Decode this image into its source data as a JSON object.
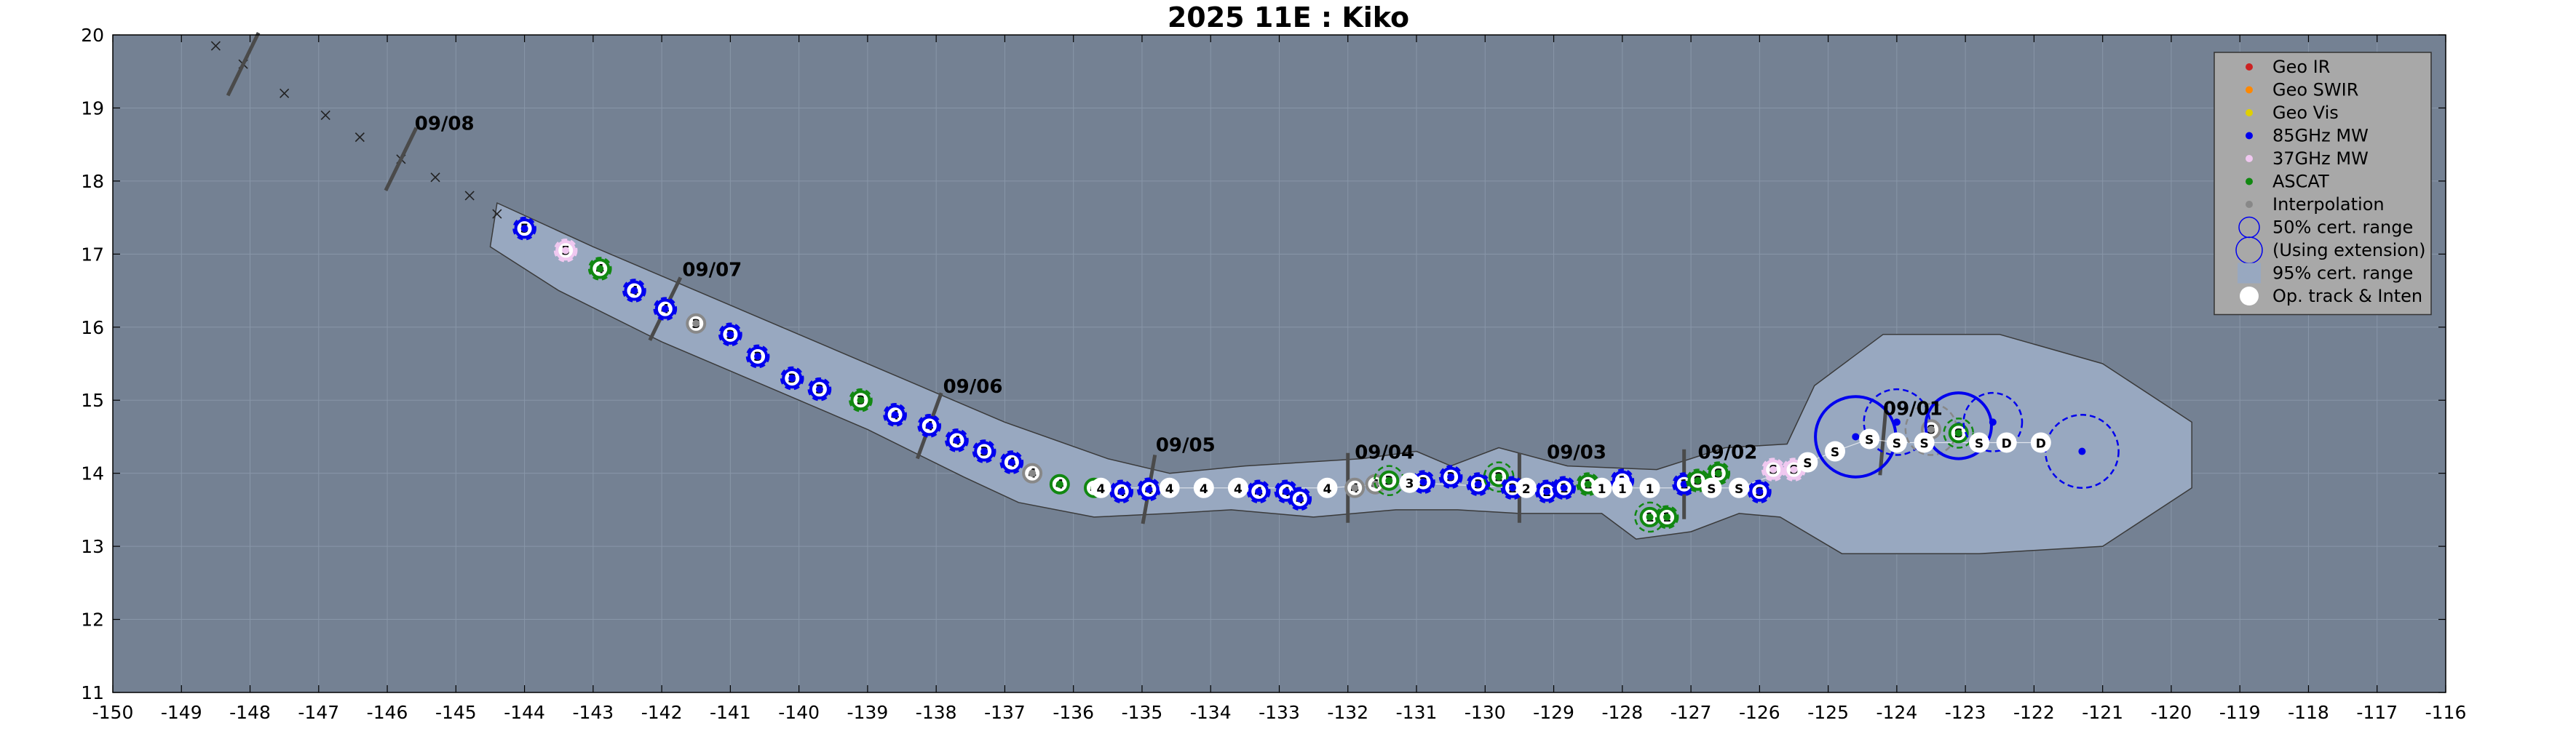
{
  "chart_data": {
    "type": "scatter",
    "title": "2025  11E :  Kiko",
    "xlabel": "",
    "ylabel": "",
    "xlim": [
      -150,
      -116
    ],
    "ylim": [
      11,
      20
    ],
    "xticks": [
      -150,
      -149,
      -148,
      -147,
      -146,
      -145,
      -144,
      -143,
      -142,
      -141,
      -140,
      -139,
      -138,
      -137,
      -136,
      -135,
      -134,
      -133,
      -132,
      -131,
      -130,
      -129,
      -128,
      -127,
      -126,
      -125,
      -124,
      -123,
      -122,
      -121,
      -120,
      -119,
      -118,
      -117,
      -116
    ],
    "yticks": [
      11,
      12,
      13,
      14,
      15,
      16,
      17,
      18,
      19,
      20
    ],
    "grid": true,
    "legend_position": "top-right",
    "colors": {
      "plot_background": "#748193",
      "cone_fill": "#98a8c0",
      "geo_ir": "#cc2222",
      "geo_swir": "#ff8800",
      "geo_vis": "#e0d000",
      "mw85": "#0000ee",
      "mw37": "#f0c8f0",
      "ascat": "#118811",
      "interp": "#888888",
      "op_track": "#ffffff"
    },
    "legend": [
      {
        "label": "Geo IR",
        "kind": "dot",
        "color": "#cc2222"
      },
      {
        "label": "Geo SWIR",
        "kind": "dot",
        "color": "#ff8800"
      },
      {
        "label": "Geo Vis",
        "kind": "dot",
        "color": "#e0d000"
      },
      {
        "label": "85GHz MW",
        "kind": "dot",
        "color": "#0000ee"
      },
      {
        "label": "37GHz MW",
        "kind": "dot",
        "color": "#f0c8f0"
      },
      {
        "label": "ASCAT",
        "kind": "dot",
        "color": "#118811"
      },
      {
        "label": "Interpolation",
        "kind": "dot",
        "color": "#888888"
      },
      {
        "label": "50% cert. range",
        "kind": "circle-dashed",
        "color": "#0000ee"
      },
      {
        "label": "(Using extension)",
        "kind": "circle-solid",
        "color": "#0000ee"
      },
      {
        "label": "95% cert. range",
        "kind": "square",
        "color": "#98a8c0"
      },
      {
        "label": "Op. track & Inten",
        "kind": "op-dot",
        "color": "#ffffff"
      }
    ],
    "date_labels": [
      {
        "text": "09/08",
        "x": -145.6,
        "y": 18.7
      },
      {
        "text": "09/07",
        "x": -141.7,
        "y": 16.7
      },
      {
        "text": "09/06",
        "x": -137.9,
        "y": 15.1
      },
      {
        "text": "09/05",
        "x": -134.8,
        "y": 14.3
      },
      {
        "text": "09/04",
        "x": -131.9,
        "y": 14.2
      },
      {
        "text": "09/03",
        "x": -129.1,
        "y": 14.2
      },
      {
        "text": "09/02",
        "x": -126.9,
        "y": 14.2
      },
      {
        "text": "09/01",
        "x": -124.2,
        "y": 14.8
      }
    ],
    "forecast_track": [
      {
        "x": -148.5,
        "y": 19.85
      },
      {
        "x": -148.1,
        "y": 19.6
      },
      {
        "x": -147.5,
        "y": 19.2
      },
      {
        "x": -146.9,
        "y": 18.9
      },
      {
        "x": -146.4,
        "y": 18.6
      },
      {
        "x": -145.8,
        "y": 18.3
      },
      {
        "x": -145.3,
        "y": 18.05
      },
      {
        "x": -144.8,
        "y": 17.8
      },
      {
        "x": -144.4,
        "y": 17.55
      }
    ],
    "op_track": [
      {
        "x": -135.6,
        "y": 13.8,
        "label": "4"
      },
      {
        "x": -134.6,
        "y": 13.8,
        "label": "4"
      },
      {
        "x": -134.1,
        "y": 13.8,
        "label": "4"
      },
      {
        "x": -133.6,
        "y": 13.8,
        "label": "4"
      },
      {
        "x": -132.3,
        "y": 13.8,
        "label": "4"
      },
      {
        "x": -131.1,
        "y": 13.87,
        "label": "3"
      },
      {
        "x": -129.4,
        "y": 13.8,
        "label": "2"
      },
      {
        "x": -128.3,
        "y": 13.8,
        "label": "1"
      },
      {
        "x": -128.0,
        "y": 13.8,
        "label": "1"
      },
      {
        "x": -127.6,
        "y": 13.8,
        "label": "1"
      },
      {
        "x": -126.7,
        "y": 13.8,
        "label": "S"
      },
      {
        "x": -126.3,
        "y": 13.8,
        "label": "S"
      },
      {
        "x": -125.3,
        "y": 14.15,
        "label": "S"
      },
      {
        "x": -124.9,
        "y": 14.3,
        "label": "S"
      },
      {
        "x": -124.4,
        "y": 14.47,
        "label": "S"
      },
      {
        "x": -124.0,
        "y": 14.42,
        "label": "S"
      },
      {
        "x": -123.6,
        "y": 14.42,
        "label": "S"
      },
      {
        "x": -122.8,
        "y": 14.42,
        "label": "S"
      },
      {
        "x": -122.4,
        "y": 14.42,
        "label": "D"
      },
      {
        "x": -121.9,
        "y": 14.42,
        "label": "D"
      }
    ],
    "fixes": [
      {
        "x": -144.0,
        "y": 17.35,
        "type": "mw85",
        "label": "5",
        "r50": 0.15
      },
      {
        "x": -143.4,
        "y": 17.05,
        "type": "mw37",
        "label": "5",
        "r50": 0.15
      },
      {
        "x": -142.9,
        "y": 16.8,
        "type": "ascat",
        "label": "4",
        "r50": 0.15
      },
      {
        "x": -142.4,
        "y": 16.5,
        "type": "mw85",
        "label": "4",
        "r50": 0.15
      },
      {
        "x": -141.95,
        "y": 16.25,
        "type": "mw85",
        "label": "4",
        "r50": 0.15
      },
      {
        "x": -141.5,
        "y": 16.05,
        "type": "interp",
        "label": "3",
        "r50": 0.12
      },
      {
        "x": -141.0,
        "y": 15.9,
        "type": "mw85",
        "label": "3",
        "r50": 0.15
      },
      {
        "x": -140.6,
        "y": 15.6,
        "type": "mw85",
        "label": "3",
        "r50": 0.15
      },
      {
        "x": -140.1,
        "y": 15.3,
        "type": "mw85",
        "label": "3",
        "r50": 0.15
      },
      {
        "x": -139.7,
        "y": 15.15,
        "type": "mw85",
        "label": "3",
        "r50": 0.15
      },
      {
        "x": -139.1,
        "y": 15.0,
        "type": "ascat",
        "label": "3",
        "r50": 0.15
      },
      {
        "x": -138.6,
        "y": 14.8,
        "type": "mw85",
        "label": "4",
        "r50": 0.15
      },
      {
        "x": -138.1,
        "y": 14.65,
        "type": "mw85",
        "label": "4",
        "r50": 0.15
      },
      {
        "x": -137.7,
        "y": 14.45,
        "type": "mw85",
        "label": "4",
        "r50": 0.15
      },
      {
        "x": -137.3,
        "y": 14.3,
        "type": "mw85",
        "label": "3",
        "r50": 0.15
      },
      {
        "x": -136.9,
        "y": 14.15,
        "type": "mw85",
        "label": "4",
        "r50": 0.15
      },
      {
        "x": -136.6,
        "y": 14.0,
        "type": "interp",
        "label": "4",
        "r50": 0.12
      },
      {
        "x": -136.2,
        "y": 13.85,
        "type": "ascat",
        "label": "4",
        "r50": 0.12
      },
      {
        "x": -135.7,
        "y": 13.8,
        "type": "ascat",
        "label": "4",
        "r50": 0.12
      },
      {
        "x": -135.3,
        "y": 13.75,
        "type": "mw85",
        "label": "4",
        "r50": 0.15
      },
      {
        "x": -134.9,
        "y": 13.78,
        "type": "mw85",
        "label": "4",
        "r50": 0.15
      },
      {
        "x": -133.3,
        "y": 13.75,
        "type": "mw85",
        "label": "4",
        "r50": 0.15
      },
      {
        "x": -132.9,
        "y": 13.75,
        "type": "mw85",
        "label": "4",
        "r50": 0.15
      },
      {
        "x": -132.7,
        "y": 13.65,
        "type": "mw85",
        "label": "4",
        "r50": 0.15
      },
      {
        "x": -131.9,
        "y": 13.8,
        "type": "interp",
        "label": "4",
        "r50": 0.12
      },
      {
        "x": -131.6,
        "y": 13.85,
        "type": "interp",
        "label": "4",
        "r50": 0.12
      },
      {
        "x": -131.4,
        "y": 13.9,
        "type": "ascat",
        "label": "3",
        "r50": 0.2
      },
      {
        "x": -130.9,
        "y": 13.88,
        "type": "mw85",
        "label": "3",
        "r50": 0.15
      },
      {
        "x": -130.5,
        "y": 13.95,
        "type": "mw85",
        "label": "3",
        "r50": 0.15
      },
      {
        "x": -130.1,
        "y": 13.85,
        "type": "mw85",
        "label": "3",
        "r50": 0.15
      },
      {
        "x": -129.8,
        "y": 13.95,
        "type": "ascat",
        "label": "2",
        "r50": 0.2
      },
      {
        "x": -129.6,
        "y": 13.8,
        "type": "mw85",
        "label": "2",
        "r50": 0.15
      },
      {
        "x": -129.1,
        "y": 13.75,
        "type": "mw85",
        "label": "2",
        "r50": 0.15
      },
      {
        "x": -128.85,
        "y": 13.8,
        "type": "mw85",
        "label": "1",
        "r50": 0.15
      },
      {
        "x": -128.5,
        "y": 13.85,
        "type": "ascat",
        "label": "1",
        "r50": 0.15
      },
      {
        "x": -128.0,
        "y": 13.9,
        "type": "mw85",
        "label": "1",
        "r50": 0.15
      },
      {
        "x": -127.6,
        "y": 13.4,
        "type": "ascat",
        "label": "1",
        "r50": 0.2
      },
      {
        "x": -127.35,
        "y": 13.4,
        "type": "ascat",
        "label": "1",
        "r50": 0.15
      },
      {
        "x": -127.1,
        "y": 13.85,
        "type": "mw85",
        "label": "1",
        "r50": 0.15
      },
      {
        "x": -126.9,
        "y": 13.9,
        "type": "ascat",
        "label": "S",
        "r50": 0.15
      },
      {
        "x": -126.6,
        "y": 14.0,
        "type": "ascat",
        "label": "S",
        "r50": 0.15
      },
      {
        "x": -126.0,
        "y": 13.75,
        "type": "mw85",
        "label": "S",
        "r50": 0.15
      },
      {
        "x": -125.8,
        "y": 14.05,
        "type": "mw37",
        "label": "S",
        "r50": 0.15
      },
      {
        "x": -125.5,
        "y": 14.05,
        "type": "mw37",
        "label": "S",
        "r50": 0.15
      },
      {
        "x": -124.6,
        "y": 14.5,
        "type": "mw85",
        "label": "",
        "r50": 0.55,
        "extension": true
      },
      {
        "x": -124.0,
        "y": 14.7,
        "type": "mw85",
        "label": "",
        "r50": 0.45
      },
      {
        "x": -123.5,
        "y": 14.6,
        "type": "interp",
        "label": "S",
        "r50": 0.35
      },
      {
        "x": -123.1,
        "y": 14.65,
        "type": "mw85",
        "label": "",
        "r50": 0.45,
        "extension": true
      },
      {
        "x": -123.1,
        "y": 14.55,
        "type": "ascat",
        "label": "S",
        "r50": 0.2
      },
      {
        "x": -122.6,
        "y": 14.7,
        "type": "mw85",
        "label": "",
        "r50": 0.4
      },
      {
        "x": -121.3,
        "y": 14.3,
        "type": "mw85",
        "label": "",
        "r50": 0.5
      }
    ],
    "cone_95": {
      "path": [
        {
          "x": -144.4,
          "y": 17.7
        },
        {
          "x": -143.0,
          "y": 17.1
        },
        {
          "x": -141.5,
          "y": 16.5
        },
        {
          "x": -140.0,
          "y": 15.9
        },
        {
          "x": -138.5,
          "y": 15.3
        },
        {
          "x": -137.0,
          "y": 14.7
        },
        {
          "x": -135.5,
          "y": 14.2
        },
        {
          "x": -134.6,
          "y": 14.0
        },
        {
          "x": -134.6,
          "y": 14.0
        },
        {
          "x": -133.5,
          "y": 14.1
        },
        {
          "x": -131.8,
          "y": 14.2
        },
        {
          "x": -131.0,
          "y": 14.3
        },
        {
          "x": -130.5,
          "y": 14.1
        },
        {
          "x": -129.8,
          "y": 14.35
        },
        {
          "x": -128.8,
          "y": 14.1
        },
        {
          "x": -127.5,
          "y": 14.05
        },
        {
          "x": -126.5,
          "y": 14.35
        },
        {
          "x": -125.6,
          "y": 14.4
        },
        {
          "x": -125.2,
          "y": 15.2
        },
        {
          "x": -124.2,
          "y": 15.9
        },
        {
          "x": -122.5,
          "y": 15.9
        },
        {
          "x": -121.0,
          "y": 15.5
        },
        {
          "x": -119.7,
          "y": 14.7
        },
        {
          "x": -119.7,
          "y": 13.8
        },
        {
          "x": -121.0,
          "y": 13.0
        },
        {
          "x": -122.8,
          "y": 12.9
        },
        {
          "x": -124.8,
          "y": 12.9
        },
        {
          "x": -125.7,
          "y": 13.4
        },
        {
          "x": -126.3,
          "y": 13.45
        },
        {
          "x": -127.0,
          "y": 13.2
        },
        {
          "x": -127.8,
          "y": 13.1
        },
        {
          "x": -128.3,
          "y": 13.45
        },
        {
          "x": -129.5,
          "y": 13.45
        },
        {
          "x": -130.4,
          "y": 13.5
        },
        {
          "x": -131.3,
          "y": 13.5
        },
        {
          "x": -132.5,
          "y": 13.4
        },
        {
          "x": -133.7,
          "y": 13.5
        },
        {
          "x": -134.6,
          "y": 13.45
        },
        {
          "x": -135.7,
          "y": 13.4
        },
        {
          "x": -136.8,
          "y": 13.6
        },
        {
          "x": -137.6,
          "y": 13.95
        },
        {
          "x": -139.0,
          "y": 14.6
        },
        {
          "x": -140.5,
          "y": 15.2
        },
        {
          "x": -142.0,
          "y": 15.8
        },
        {
          "x": -143.5,
          "y": 16.5
        },
        {
          "x": -144.5,
          "y": 17.1
        }
      ]
    },
    "day_markers": [
      {
        "x": -145.8,
        "y": 18.3,
        "angle": 64
      },
      {
        "x": -141.95,
        "y": 16.25,
        "angle": 64
      },
      {
        "x": -138.1,
        "y": 14.65,
        "angle": 70
      },
      {
        "x": -134.9,
        "y": 13.78,
        "angle": 80
      },
      {
        "x": -132.0,
        "y": 13.8,
        "angle": 90
      },
      {
        "x": -129.5,
        "y": 13.8,
        "angle": 90
      },
      {
        "x": -127.1,
        "y": 13.85,
        "angle": 90
      },
      {
        "x": -124.2,
        "y": 14.45,
        "angle": 85
      },
      {
        "x": -148.1,
        "y": 19.6,
        "angle": 64
      }
    ]
  }
}
